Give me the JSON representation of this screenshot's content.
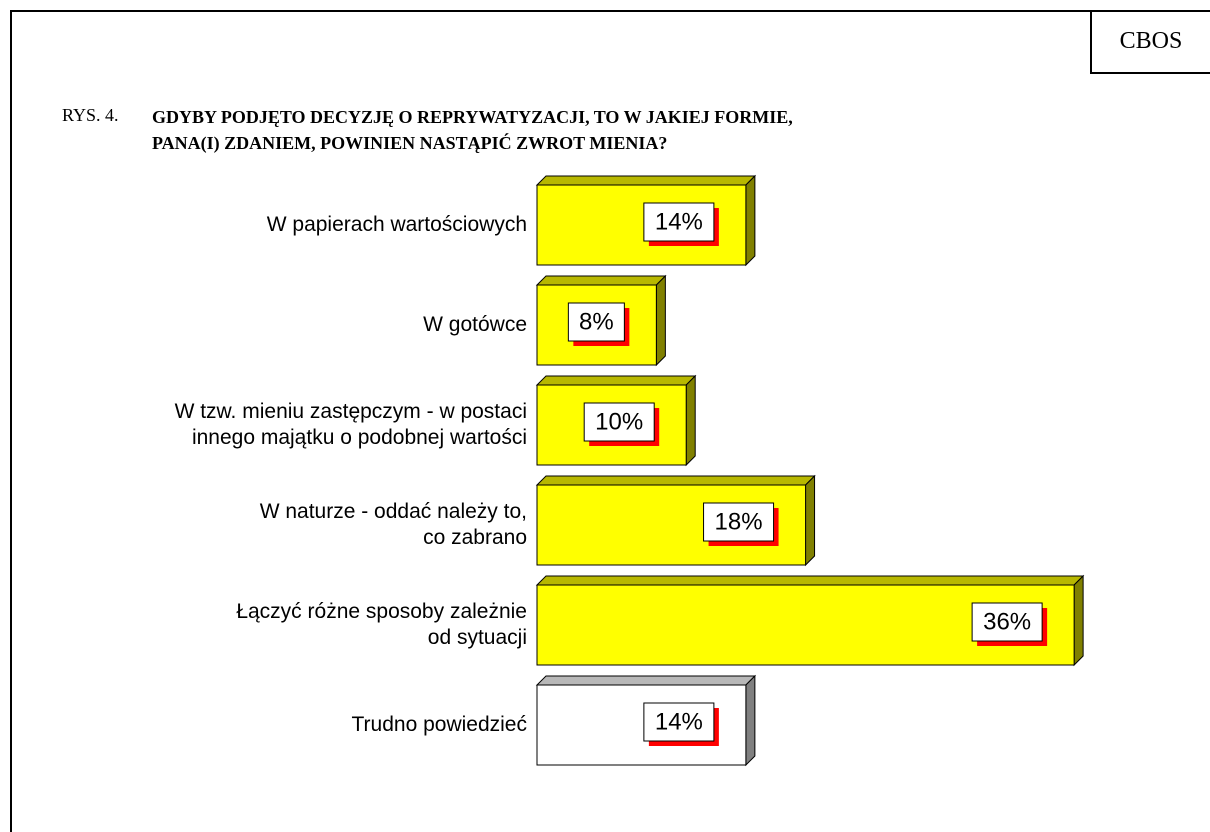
{
  "chart_data": {
    "type": "bar3d_horizontal",
    "source": "CBOS",
    "figure_label": "RYS. 4.",
    "title": "GDYBY PODJĘTO DECYZJĘ O REPRYWATYZACJI, TO W JAKIEJ FORMIE,\nPANA(I) ZDANIEM, POWINIEN NASTĄPIĆ ZWROT MIENIA?",
    "categories": [
      "W papierach wartościowych",
      "W gotówce",
      "W tzw. mieniu zastępczym - w postaci\ninnego majątku o podobnej wartości",
      "W naturze - oddać należy to,\nco zabrano",
      "Łączyć  różne sposoby zależnie\nod sytuacji",
      "Trudno powiedzieć"
    ],
    "values": [
      14,
      8,
      10,
      18,
      36,
      14
    ],
    "value_labels": [
      "14%",
      "8%",
      "10%",
      "18%",
      "36%",
      "14%"
    ],
    "colors": [
      "#ffff00",
      "#ffff00",
      "#ffff00",
      "#ffff00",
      "#ffff00",
      "#ffffff"
    ]
  }
}
